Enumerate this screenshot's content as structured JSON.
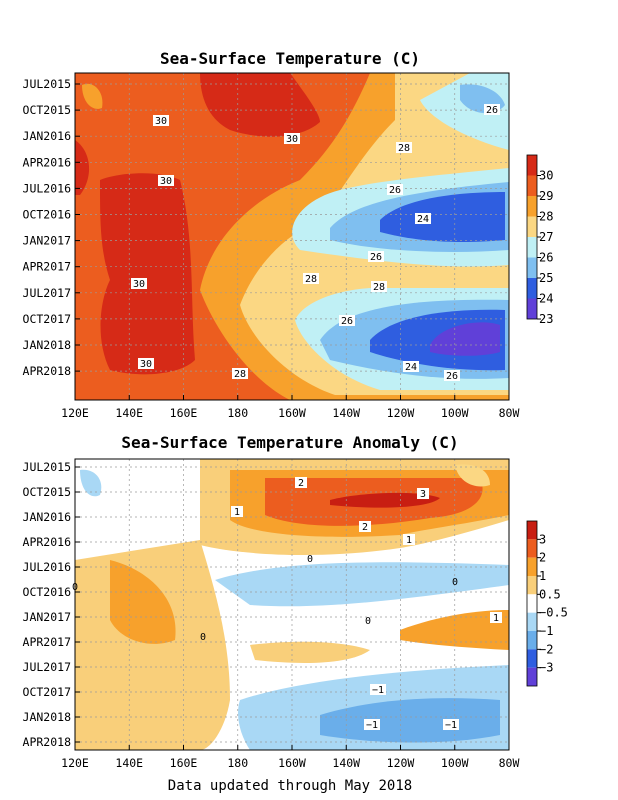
{
  "footer": "Data updated through May 2018",
  "chart_data": [
    {
      "type": "heatmap",
      "title": "Sea-Surface Temperature (C)",
      "x_ticks": [
        "120E",
        "140E",
        "160E",
        "180",
        "160W",
        "140W",
        "120W",
        "100W",
        "80W"
      ],
      "y_ticks": [
        "JUL2015",
        "OCT2015",
        "JAN2016",
        "APR2016",
        "JUL2016",
        "OCT2016",
        "JAN2017",
        "APR2017",
        "JUL2017",
        "OCT2017",
        "JAN2018",
        "APR2018"
      ],
      "x_range": [
        "120E",
        "80W"
      ],
      "y_range": [
        "JUN2015",
        "MAY2018"
      ],
      "grid": true,
      "colorbar": {
        "labels": [
          "30",
          "29",
          "28",
          "27",
          "26",
          "25",
          "24",
          "23"
        ],
        "colors": [
          "#d62a17",
          "#ec5d1f",
          "#f7a12c",
          "#fbd783",
          "#c0f0f5",
          "#7fbff0",
          "#2f5ee0",
          "#6040d8"
        ]
      },
      "contour_labels": [
        "30",
        "30",
        "30",
        "30",
        "30",
        "26",
        "28",
        "26",
        "24",
        "26",
        "28",
        "28",
        "26",
        "24",
        "26",
        "28"
      ]
    },
    {
      "type": "heatmap",
      "title": "Sea-Surface Temperature Anomaly (C)",
      "x_ticks": [
        "120E",
        "140E",
        "160E",
        "180",
        "160W",
        "140W",
        "120W",
        "100W",
        "80W"
      ],
      "y_ticks": [
        "JUL2015",
        "OCT2015",
        "JAN2016",
        "APR2016",
        "JUL2016",
        "OCT2016",
        "JAN2017",
        "APR2017",
        "JUL2017",
        "OCT2017",
        "JAN2018",
        "APR2018"
      ],
      "x_range": [
        "120E",
        "80W"
      ],
      "y_range": [
        "JUN2015",
        "MAY2018"
      ],
      "grid": true,
      "colorbar": {
        "labels": [
          "3",
          "2",
          "1",
          "0.5",
          "−0.5",
          "−1",
          "−2",
          "−3"
        ],
        "colors": [
          "#c81e12",
          "#ec5d1f",
          "#f7a12c",
          "#f9cf7a",
          "#ffffff",
          "#a9d8f5",
          "#6aaeea",
          "#2f5ee0",
          "#6040d8"
        ]
      },
      "contour_labels": [
        "2",
        "3",
        "1",
        "2",
        "1",
        "0",
        "0",
        "0",
        "0",
        "1",
        "0",
        "−1",
        "−1",
        "−1"
      ]
    }
  ]
}
